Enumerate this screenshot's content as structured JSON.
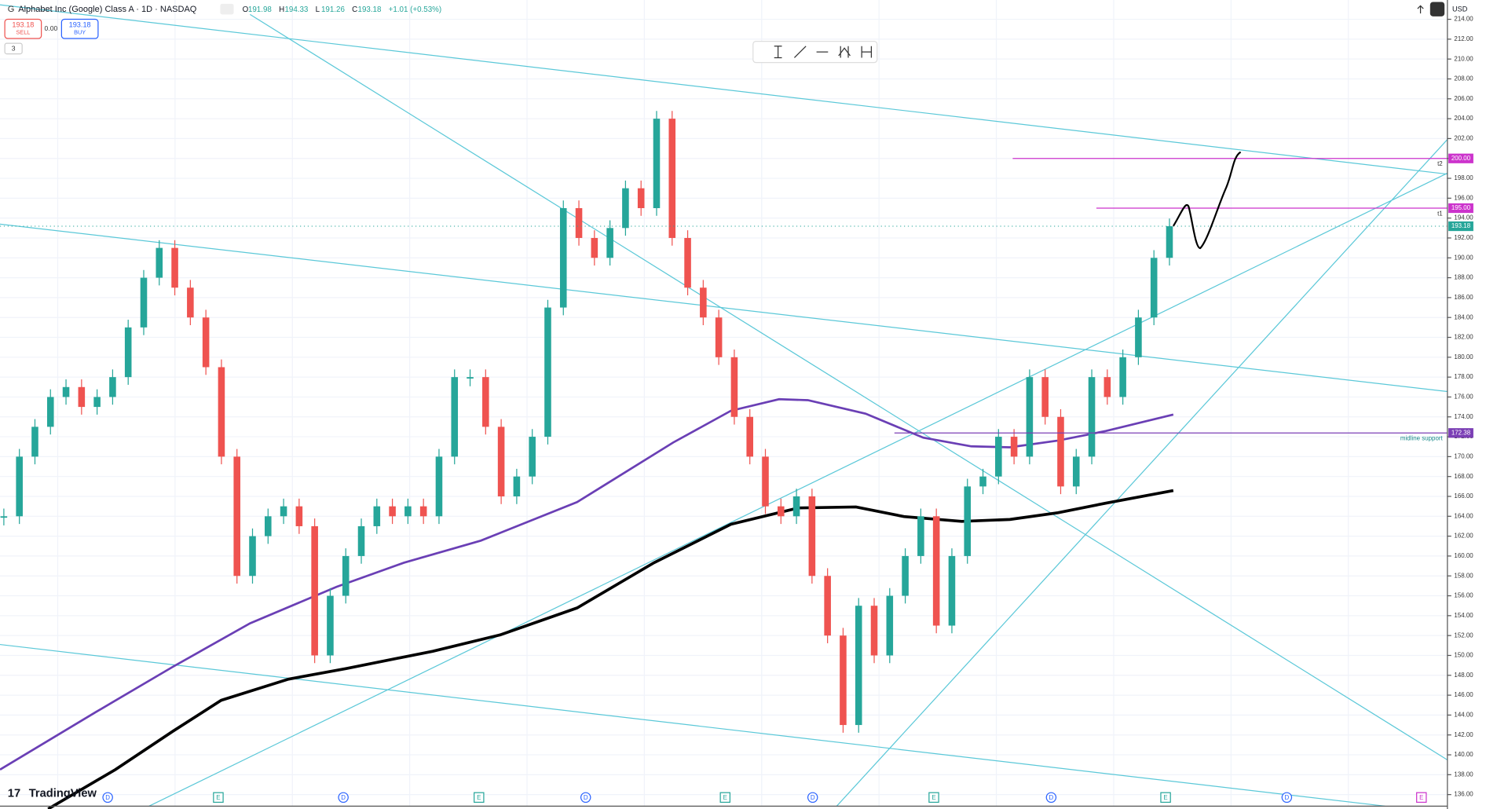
{
  "header": {
    "logo": "G",
    "symbol": "Alphabet Inc (Google) Class A · 1D · NASDAQ",
    "ohlc": [
      {
        "key": "O",
        "value": "191.98"
      },
      {
        "key": "H",
        "value": "194.33"
      },
      {
        "key": "L",
        "value": "191.26"
      },
      {
        "key": "C",
        "value": "193.18"
      }
    ],
    "change": "+1.01 (+0.53%)"
  },
  "order_panel": {
    "sell_price": "193.18",
    "sell_label": "SELL",
    "spread": "0.00",
    "buy_price": "193.18",
    "buy_label": "BUY",
    "indicator_count": "3"
  },
  "currency": "USD",
  "brand": "TradingView",
  "chart": {
    "type": "candlestick",
    "up_color": "#26a69a",
    "down_color": "#ef5350",
    "ylim": [
      134.84,
      215.94
    ],
    "yticks": [
      {
        "value": 136,
        "label": "136.00"
      },
      {
        "value": 138,
        "label": "138.00"
      },
      {
        "value": 140,
        "label": "140.00"
      },
      {
        "value": 142,
        "label": "142.00"
      },
      {
        "value": 144,
        "label": "144.00"
      },
      {
        "value": 146,
        "label": "146.00"
      },
      {
        "value": 148,
        "label": "148.00"
      },
      {
        "value": 150,
        "label": "150.00"
      },
      {
        "value": 152,
        "label": "152.00"
      },
      {
        "value": 154,
        "label": "154.00"
      },
      {
        "value": 156,
        "label": "156.00"
      },
      {
        "value": 158,
        "label": "158.00"
      },
      {
        "value": 160,
        "label": "160.00"
      },
      {
        "value": 162,
        "label": "162.00"
      },
      {
        "value": 164,
        "label": "164.00"
      },
      {
        "value": 166,
        "label": "166.00"
      },
      {
        "value": 168,
        "label": "168.00"
      },
      {
        "value": 170,
        "label": "170.00"
      },
      {
        "value": 172,
        "label": "172.00"
      },
      {
        "value": 174,
        "label": "174.00"
      },
      {
        "value": 176,
        "label": "176.00"
      },
      {
        "value": 178,
        "label": "178.00"
      },
      {
        "value": 180,
        "label": "180.00"
      },
      {
        "value": 182,
        "label": "182.00"
      },
      {
        "value": 184,
        "label": "184.00"
      },
      {
        "value": 186,
        "label": "186.00"
      },
      {
        "value": 188,
        "label": "188.00"
      },
      {
        "value": 190,
        "label": "190.00"
      },
      {
        "value": 192,
        "label": "192.00"
      },
      {
        "value": 194,
        "label": "194.00"
      },
      {
        "value": 196,
        "label": "196.00"
      },
      {
        "value": 198,
        "label": "198.00"
      },
      {
        "value": 200,
        "label": "200.00"
      },
      {
        "value": 202,
        "label": "202.00"
      },
      {
        "value": 204,
        "label": "204.00"
      },
      {
        "value": 206,
        "label": "206.00"
      },
      {
        "value": 208,
        "label": "208.00"
      },
      {
        "value": 210,
        "label": "210.00"
      },
      {
        "value": 212,
        "label": "212.00"
      },
      {
        "value": 214,
        "label": "214.00"
      }
    ],
    "closes": [
      164,
      170,
      173,
      176,
      177,
      175,
      176,
      178,
      183,
      188,
      191,
      187,
      184,
      179,
      170,
      158,
      162,
      164,
      165,
      163,
      150,
      156,
      160,
      163,
      165,
      164,
      165,
      164,
      170,
      178,
      178,
      173,
      166,
      168,
      172,
      185,
      195,
      192,
      190,
      193,
      197,
      195,
      204,
      192,
      187,
      184,
      180,
      174,
      170,
      165,
      164,
      166,
      158,
      152,
      143,
      155,
      150,
      156,
      160,
      164,
      153,
      160,
      167,
      168,
      172,
      170,
      178,
      174,
      167,
      170,
      178,
      176,
      180,
      184,
      190,
      193.18
    ],
    "levels": [
      {
        "value": 200,
        "label": "200.00",
        "tag": "t2",
        "color": "#cc33cc"
      },
      {
        "value": 195,
        "label": "195.00",
        "tag": "t1",
        "color": "#cc33cc"
      },
      {
        "value": 172.38,
        "label": "172.38",
        "tag": "midline support",
        "color": "#7b3fb5"
      }
    ],
    "last_price": {
      "value": 193.18,
      "label": "193.18",
      "color": "#26a69a"
    },
    "event_markers": [
      "D",
      "E",
      "D",
      "E",
      "D",
      "E",
      "D",
      "E",
      "D",
      "E",
      "D",
      "E"
    ]
  }
}
